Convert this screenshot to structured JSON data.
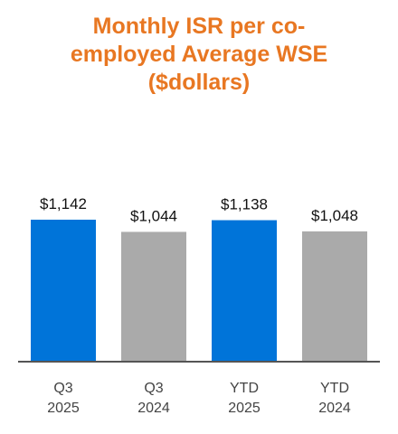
{
  "chart_data": {
    "type": "bar",
    "title_lines": [
      "Monthly ISR per co-",
      "employed Average WSE",
      "($dollars)"
    ],
    "categories": [
      [
        "Q3",
        "2025"
      ],
      [
        "Q3",
        "2024"
      ],
      [
        "YTD",
        "2025"
      ],
      [
        "YTD",
        "2024"
      ]
    ],
    "values": [
      1142,
      1044,
      1138,
      1048
    ],
    "data_labels": [
      "$1,142",
      "$1,044",
      "$1,138",
      "$1,048"
    ],
    "bar_colors": [
      "#0074d9",
      "#aaaaaa",
      "#0074d9",
      "#aaaaaa"
    ],
    "xlabel": "",
    "ylabel": "",
    "ylim": [
      0,
      1600
    ],
    "grid": false,
    "legend": "none"
  },
  "colors": {
    "title": "#e87722",
    "axis": "#555555"
  }
}
